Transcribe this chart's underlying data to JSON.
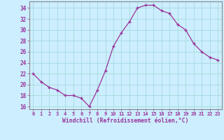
{
  "x": [
    0,
    1,
    2,
    3,
    4,
    5,
    6,
    7,
    8,
    9,
    10,
    11,
    12,
    13,
    14,
    15,
    16,
    17,
    18,
    19,
    20,
    21,
    22,
    23
  ],
  "y": [
    22,
    20.5,
    19.5,
    19,
    18,
    18,
    17.5,
    16,
    19,
    22.5,
    27,
    29.5,
    31.5,
    34,
    34.5,
    34.5,
    33.5,
    33,
    31,
    30,
    27.5,
    26,
    25,
    24.5
  ],
  "line_color": "#993399",
  "marker_color": "#993399",
  "bg_color": "#cceeff",
  "grid_color": "#aadddd",
  "xlabel": "Windchill (Refroidissement éolien,°C)",
  "xlabel_color": "#993399",
  "tick_color": "#993399",
  "spine_color": "#888888",
  "ylim": [
    15.5,
    35.2
  ],
  "yticks": [
    16,
    18,
    20,
    22,
    24,
    26,
    28,
    30,
    32,
    34
  ],
  "xlim": [
    -0.5,
    23.5
  ],
  "xticks": [
    0,
    1,
    2,
    3,
    4,
    5,
    6,
    7,
    8,
    9,
    10,
    11,
    12,
    13,
    14,
    15,
    16,
    17,
    18,
    19,
    20,
    21,
    22,
    23
  ]
}
